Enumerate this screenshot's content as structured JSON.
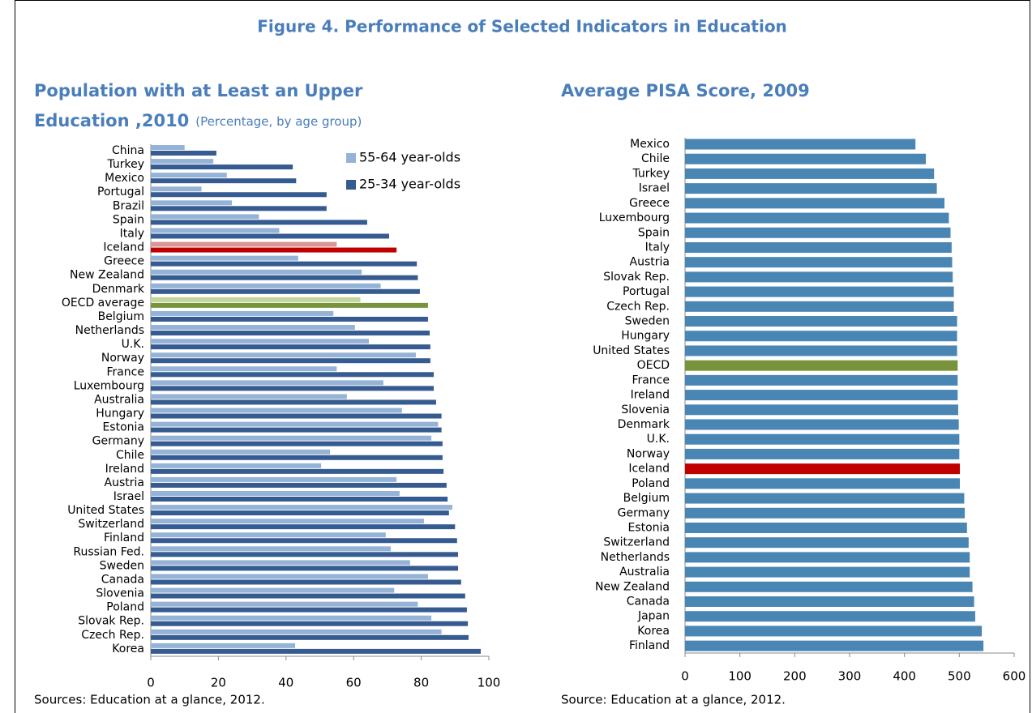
{
  "figure_title": "Figure 4. Performance of Selected Indicators in Education",
  "chart_data": [
    {
      "type": "bar",
      "orientation": "horizontal",
      "title_lines": [
        "Population with at Least an Upper",
        "Education ,2010"
      ],
      "subtitle": "(Percentage, by age group)",
      "source": "Sources: Education at a glance, 2012.",
      "categories": [
        "China",
        "Turkey",
        "Mexico",
        "Portugal",
        "Brazil",
        "Spain",
        "Italy",
        "Iceland",
        "Greece",
        "New Zealand",
        "Denmark",
        "OECD average",
        "Belgium",
        "Netherlands",
        "U.K.",
        "Norway",
        "France",
        "Luxembourg",
        "Australia",
        "Hungary",
        "Estonia",
        "Germany",
        "Chile",
        "Ireland",
        "Austria",
        "Israel",
        "United States",
        "Switzerland",
        "Finland",
        "Russian Fed.",
        "Sweden",
        "Canada",
        "Slovenia",
        "Poland",
        "Slovak Rep.",
        "Czech Rep.",
        "Korea"
      ],
      "series": [
        {
          "name": "55-64 year-olds",
          "color": "#95b3d7",
          "highlight": {
            "Iceland": "#d99694",
            "OECD average": "#c3d69b"
          },
          "values": [
            10,
            18.5,
            22.5,
            15,
            24,
            32,
            38,
            55,
            43.6,
            62.4,
            68,
            62,
            54,
            60.4,
            64.5,
            78.4,
            55,
            68.8,
            58,
            74.3,
            85,
            83,
            53,
            50.4,
            72.7,
            73.6,
            89.2,
            80.8,
            69.5,
            71,
            76.7,
            82,
            72,
            79,
            83,
            86,
            42.7
          ]
        },
        {
          "name": "25-34 year-olds",
          "color": "#355b91",
          "highlight": {
            "Iceland": "#c00000",
            "OECD average": "#77933c"
          },
          "values": [
            19.4,
            42,
            43,
            52,
            52,
            64,
            70.5,
            72.7,
            78.7,
            79,
            79.6,
            82,
            82,
            82.5,
            82.7,
            82.7,
            83.7,
            83.7,
            84.4,
            86,
            86,
            86.3,
            86.3,
            86.6,
            87.5,
            87.8,
            88.2,
            90,
            90.6,
            90.9,
            90.9,
            91.8,
            93,
            93.5,
            93.8,
            94,
            97.6
          ]
        }
      ],
      "xlim": [
        0,
        100
      ],
      "xticks": [
        0,
        20,
        40,
        60,
        80,
        100
      ],
      "legend": "upper right"
    },
    {
      "type": "bar",
      "orientation": "horizontal",
      "title_lines": [
        "Average PISA Score, 2009"
      ],
      "source": "Source: Education at a glance, 2012.",
      "categories": [
        "Mexico",
        "Chile",
        "Turkey",
        "Israel",
        "Greece",
        "Luxembourg",
        "Spain",
        "Italy",
        "Austria",
        "Slovak Rep.",
        "Portugal",
        "Czech Rep.",
        "Sweden",
        "Hungary",
        "United States",
        "OECD",
        "France",
        "Ireland",
        "Slovenia",
        "Denmark",
        "U.K.",
        "Norway",
        "Iceland",
        "Poland",
        "Belgium",
        "Germany",
        "Estonia",
        "Switzerland",
        "Netherlands",
        "Australia",
        "New Zealand",
        "Canada",
        "Japan",
        "Korea",
        "Finland"
      ],
      "series": [
        {
          "name": "Average PISA Score",
          "color": "#4a86b4",
          "highlight": {
            "Iceland": "#c00000",
            "OECD": "#77933c"
          },
          "values": [
            420,
            439,
            454,
            459,
            473,
            481,
            484,
            486,
            487,
            488,
            490,
            490,
            496,
            496,
            496,
            497,
            497,
            497,
            498,
            499,
            500,
            500,
            501,
            501,
            509,
            510,
            514,
            517,
            519,
            519,
            524,
            527,
            529,
            541,
            544
          ]
        }
      ],
      "xlim": [
        0,
        600
      ],
      "xticks": [
        0,
        100,
        200,
        300,
        400,
        500,
        600
      ]
    }
  ]
}
